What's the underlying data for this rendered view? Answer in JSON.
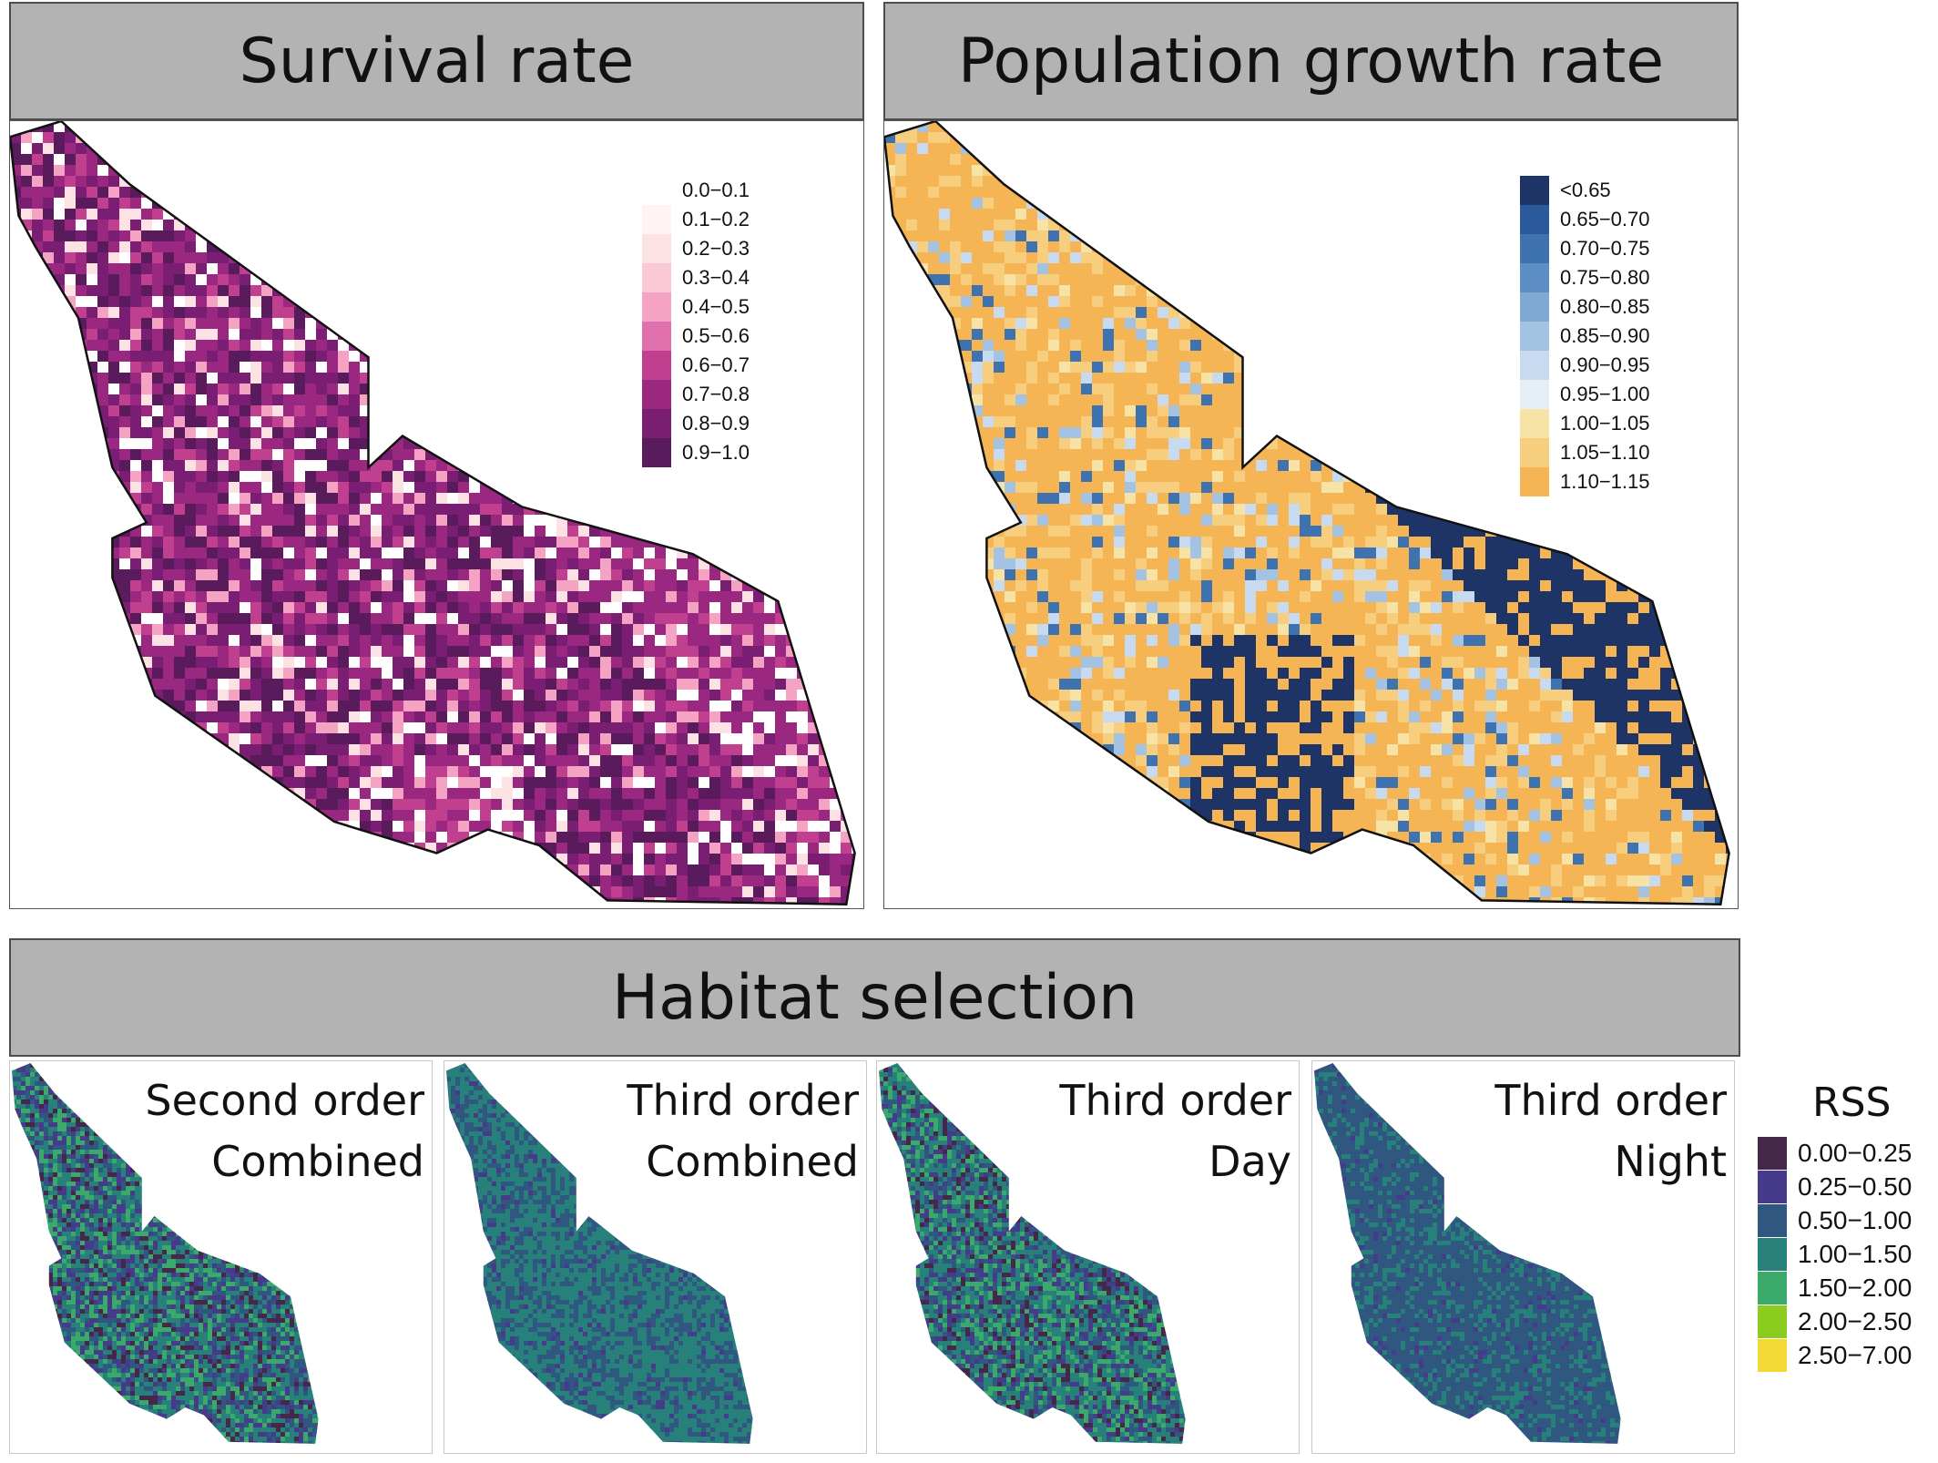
{
  "panels": {
    "survival": {
      "title": "Survival rate",
      "legend": [
        "0.0−0.1",
        "0.1−0.2",
        "0.2−0.3",
        "0.3−0.4",
        "0.4−0.5",
        "0.5−0.6",
        "0.6−0.7",
        "0.7−0.8",
        "0.8−0.9",
        "0.9−1.0"
      ],
      "colors": [
        "#ffffff",
        "#fff3f3",
        "#fde2e4",
        "#fbc8d6",
        "#f5a3c3",
        "#e070ad",
        "#c0408f",
        "#9a2780",
        "#7a1e74",
        "#5a1b5c"
      ]
    },
    "growth": {
      "title": "Population growth rate",
      "legend": [
        "<0.65",
        "0.65−0.70",
        "0.70−0.75",
        "0.75−0.80",
        "0.80−0.85",
        "0.85−0.90",
        "0.90−0.95",
        "0.95−1.00",
        "1.00−1.05",
        "1.05−1.10",
        "1.10−1.15"
      ],
      "colors": [
        "#1f3466",
        "#2b5a9c",
        "#3f73b0",
        "#5d8fc4",
        "#7ea9d3",
        "#a4c3e2",
        "#c8daef",
        "#e6eef8",
        "#f8e3a6",
        "#f7cd7e",
        "#f5b555"
      ]
    },
    "habitat": {
      "title": "Habitat selection",
      "maps": [
        {
          "line1": "Second order",
          "line2": "Combined"
        },
        {
          "line1": "Third order",
          "line2": "Combined"
        },
        {
          "line1": "Third order",
          "line2": "Day"
        },
        {
          "line1": "Third order",
          "line2": "Night"
        }
      ],
      "legend_title": "RSS",
      "legend": [
        "0.00−0.25",
        "0.25−0.50",
        "0.50−1.00",
        "1.00−1.50",
        "1.50−2.00",
        "2.00−2.50",
        "2.50−7.00"
      ],
      "colors": [
        "#45274a",
        "#463a8a",
        "#30577f",
        "#28807a",
        "#3ba96a",
        "#8ccc1e",
        "#f2d934"
      ]
    }
  }
}
